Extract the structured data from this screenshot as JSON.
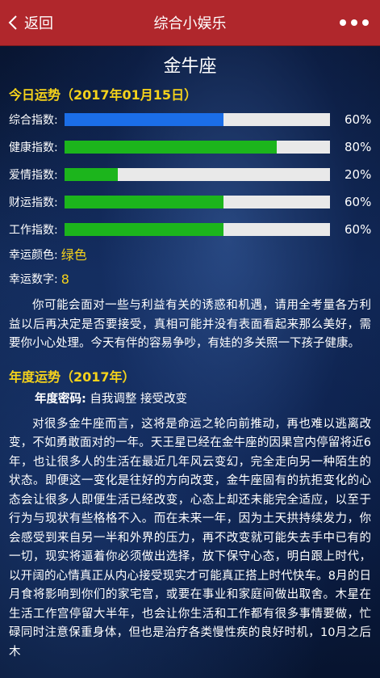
{
  "nav": {
    "back_label": "返回",
    "title": "综合小娱乐"
  },
  "sign": "金牛座",
  "today": {
    "title": "今日运势（2017年01月15日）",
    "stats": [
      {
        "label": "综合指数:",
        "value": 60,
        "pct_text": "60%",
        "color": "#1b6ee8"
      },
      {
        "label": "健康指数:",
        "value": 80,
        "pct_text": "80%",
        "color": "#1cb51c"
      },
      {
        "label": "爱情指数:",
        "value": 20,
        "pct_text": "20%",
        "color": "#1cb51c"
      },
      {
        "label": "财运指数:",
        "value": 60,
        "pct_text": "60%",
        "color": "#1cb51c"
      },
      {
        "label": "工作指数:",
        "value": 60,
        "pct_text": "60%",
        "color": "#1cb51c"
      }
    ],
    "lucky_color_label": "幸运颜色:",
    "lucky_color": "绿色",
    "lucky_number_label": "幸运数字:",
    "lucky_number": "8",
    "summary": "你可能会面对一些与利益有关的诱惑和机遇，请用全考量各方利益以后再决定是否要接受，真相可能并没有表面看起来那么美好，需要你小心处理。今天有伴的容易争吵，有娃的多关照一下孩子健康。"
  },
  "year": {
    "title": "年度运势（2017年）",
    "keyword_label": "年度密码:",
    "keyword": "自我调整 接受改变",
    "text": "对很多金牛座而言，这将是命运之轮向前推动，再也难以逃离改变，不如勇敢面对的一年。天王星已经在金牛座的因果宫内停留将近6年，也让很多人的生活在最近几年风云变幻，完全走向另一种陌生的状态。即便这一变化是往好的方向改变，金牛座固有的抗拒变化的心态会让很多人即便生活已经改变，心态上却还未能完全适应，以至于行为与现状有些格格不入。而在未来一年，因为土天拱持续发力，你会感受到来自另一半和外界的压力，再不改变就可能失去手中已有的一切，现实将逼着你必须做出选择，放下保守心态，明白跟上时代，以开阔的心情真正从内心接受现实才可能真正搭上时代快车。8月的日月食将影响到你们的家宅宫，或要在事业和家庭间做出取舍。木星在生活工作宫停留大半年，也会让你生活和工作都有很多事情要做，忙碌同时注意保重身体，但也是治疗各类慢性疾的良好时机，10月之后木"
  }
}
